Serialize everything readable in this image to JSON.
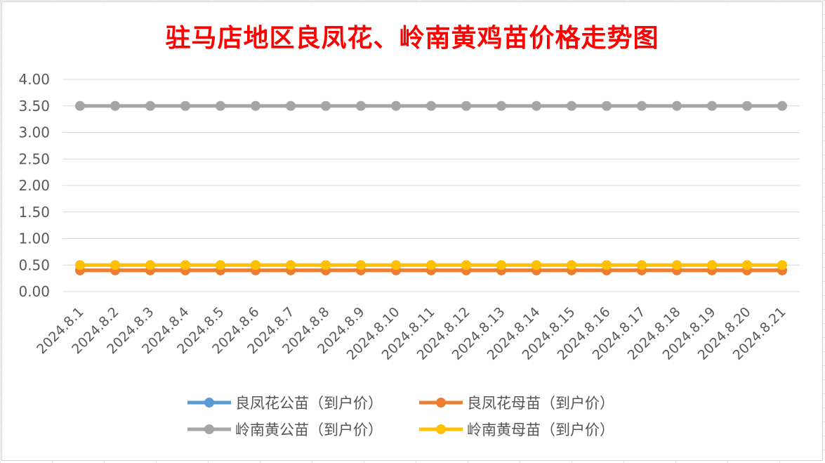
{
  "chart_data": {
    "type": "line",
    "title": "驻马店地区良凤花、岭南黄鸡苗价格走势图",
    "xlabel": "",
    "ylabel": "",
    "categories": [
      "2024.8.1",
      "2024.8.2",
      "2024.8.3",
      "2024.8.4",
      "2024.8.5",
      "2024.8.6",
      "2024.8.7",
      "2024.8.8",
      "2024.8.9",
      "2024.8.10",
      "2024.8.11",
      "2024.8.12",
      "2024.8.13",
      "2024.8.14",
      "2024.8.15",
      "2024.8.16",
      "2024.8.17",
      "2024.8.18",
      "2024.8.19",
      "2024.8.20",
      "2024.8.21"
    ],
    "ylim": [
      0,
      4
    ],
    "yticks": [
      "0.00",
      "0.50",
      "1.00",
      "1.50",
      "2.00",
      "2.50",
      "3.00",
      "3.50",
      "4.00"
    ],
    "grid": true,
    "legend_position": "bottom",
    "series": [
      {
        "name": "良凤花公苗（到户价）",
        "color": "#5b9bd5",
        "values": [
          0.4,
          0.4,
          0.4,
          0.4,
          0.4,
          0.4,
          0.4,
          0.4,
          0.4,
          0.4,
          0.4,
          0.4,
          0.4,
          0.4,
          0.4,
          0.4,
          0.4,
          0.4,
          0.4,
          0.4,
          0.4
        ]
      },
      {
        "name": "良凤花母苗（到户价）",
        "color": "#ed7d31",
        "values": [
          0.4,
          0.4,
          0.4,
          0.4,
          0.4,
          0.4,
          0.4,
          0.4,
          0.4,
          0.4,
          0.4,
          0.4,
          0.4,
          0.4,
          0.4,
          0.4,
          0.4,
          0.4,
          0.4,
          0.4,
          0.4
        ]
      },
      {
        "name": "岭南黄公苗（到户价）",
        "color": "#a5a5a5",
        "values": [
          3.5,
          3.5,
          3.5,
          3.5,
          3.5,
          3.5,
          3.5,
          3.5,
          3.5,
          3.5,
          3.5,
          3.5,
          3.5,
          3.5,
          3.5,
          3.5,
          3.5,
          3.5,
          3.5,
          3.5,
          3.5
        ]
      },
      {
        "name": "岭南黄母苗（到户价）",
        "color": "#ffc000",
        "values": [
          0.5,
          0.5,
          0.5,
          0.5,
          0.5,
          0.5,
          0.5,
          0.5,
          0.5,
          0.5,
          0.5,
          0.5,
          0.5,
          0.5,
          0.5,
          0.5,
          0.5,
          0.5,
          0.5,
          0.5,
          0.5
        ]
      }
    ]
  }
}
